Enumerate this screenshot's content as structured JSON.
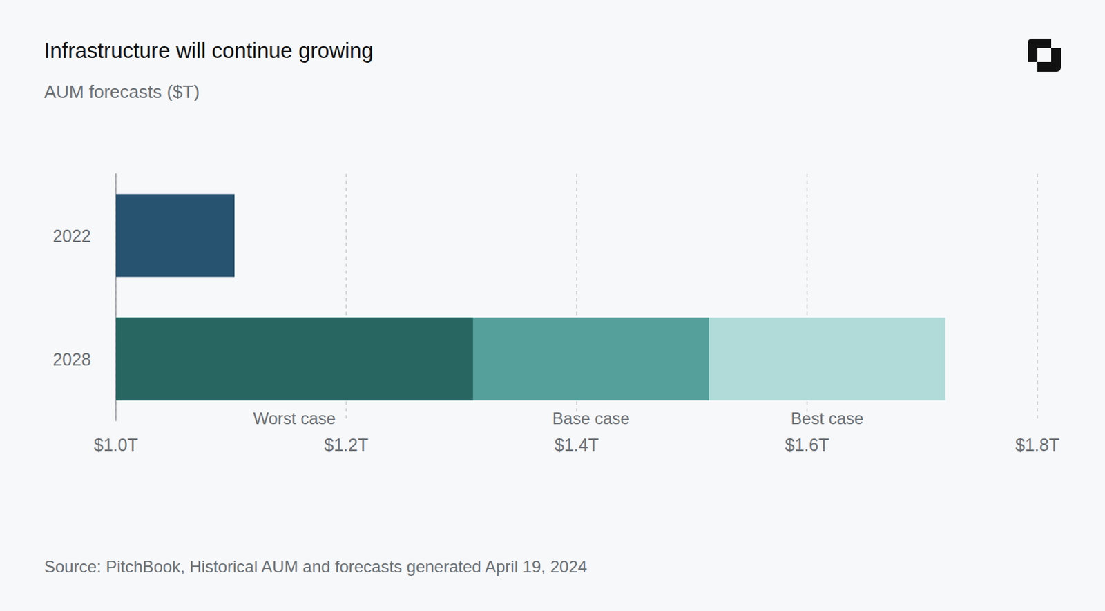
{
  "chart_data": {
    "type": "bar",
    "orientation": "horizontal",
    "title": "Infrastructure will continue growing",
    "subtitle": "AUM forecasts ($T)",
    "source": "Source: PitchBook, Historical AUM and forecasts generated April 19, 2024",
    "categories": [
      "2022",
      "2028"
    ],
    "series": [
      {
        "name": "2022",
        "color": "#275270",
        "values": [
          1.103,
          null
        ]
      },
      {
        "name": "Worst case",
        "color": "#276661",
        "values": [
          null,
          1.31
        ]
      },
      {
        "name": "Base case",
        "color": "#55a09b",
        "values": [
          null,
          1.515
        ]
      },
      {
        "name": "Best case",
        "color": "#b0dbd8",
        "values": [
          null,
          1.72
        ]
      }
    ],
    "xlim": [
      1.0,
      1.8
    ],
    "xticks": [
      {
        "value": 1.0,
        "label": "$1.0T"
      },
      {
        "value": 1.2,
        "label": "$1.2T"
      },
      {
        "value": 1.4,
        "label": "$1.4T"
      },
      {
        "value": 1.6,
        "label": "$1.6T"
      },
      {
        "value": 1.8,
        "label": "$1.8T"
      }
    ],
    "grid": true
  }
}
